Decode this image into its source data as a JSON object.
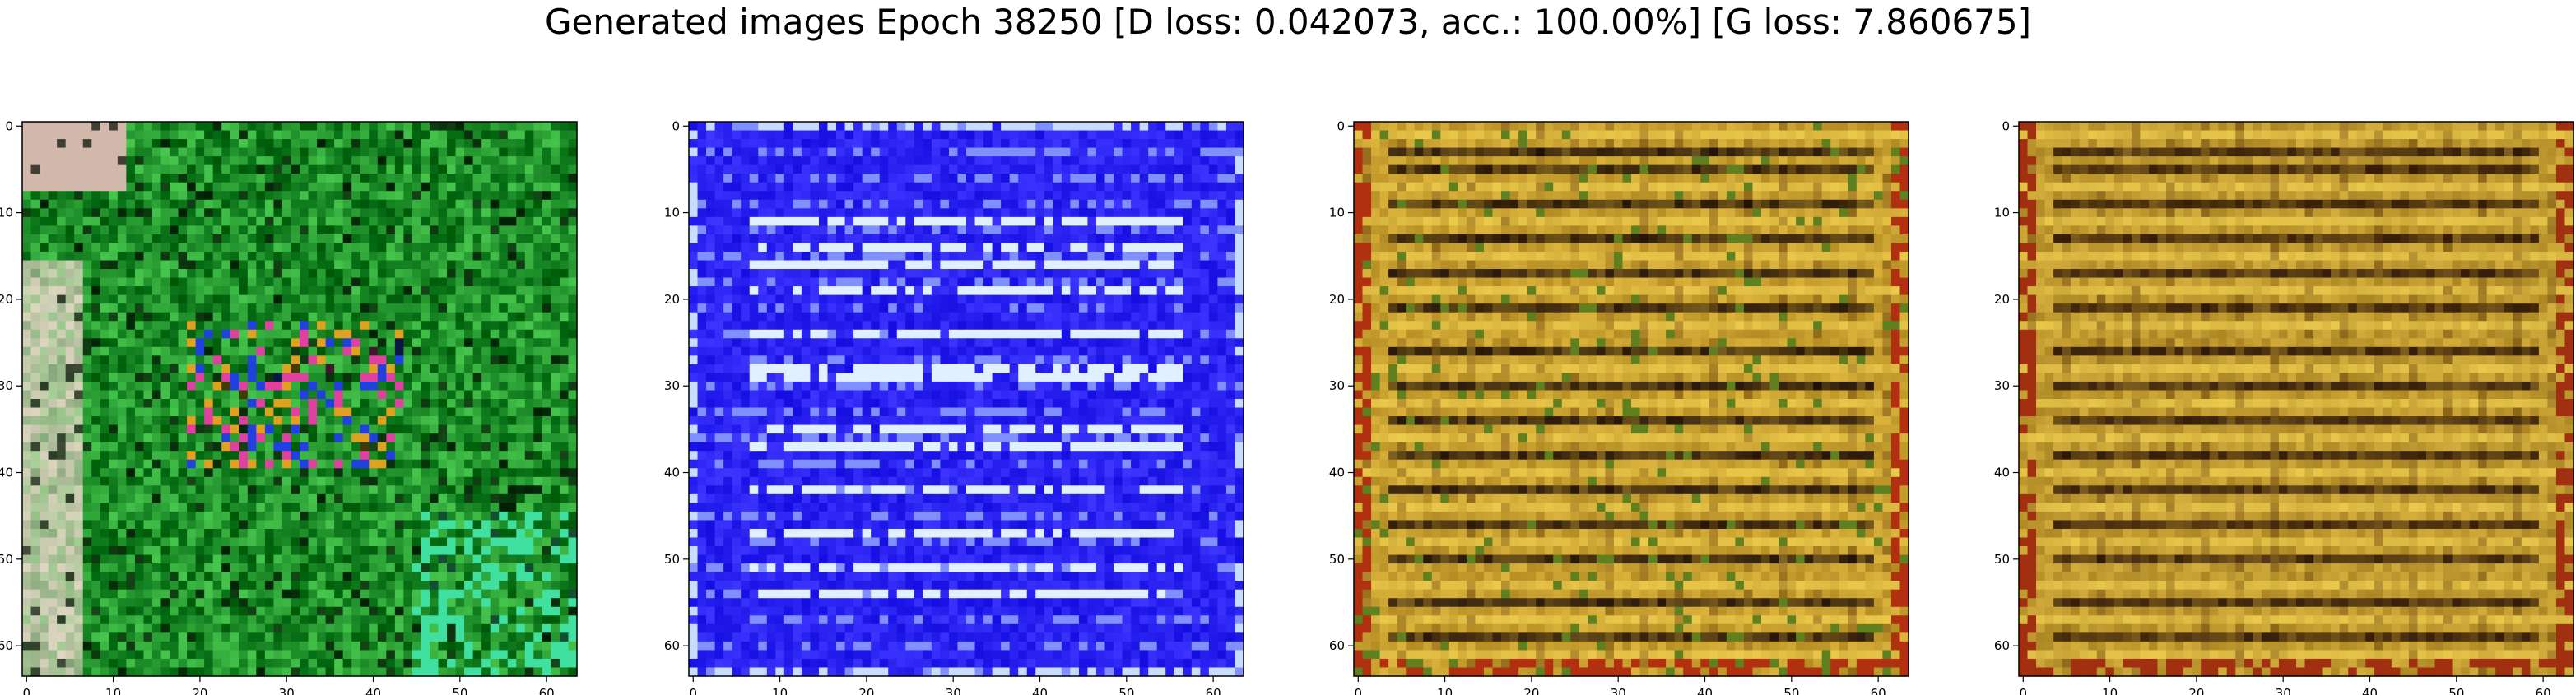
{
  "title": "Generated images Epoch 38250 [D loss: 0.042073, acc.: 100.00%] [G loss: 7.860675]",
  "chart_data": [
    {
      "type": "heatmap",
      "name": "generated-image-1",
      "image_size": 64,
      "xlim": [
        -0.5,
        63.5
      ],
      "ylim": [
        63.5,
        -0.5
      ],
      "xticks": [
        0,
        10,
        20,
        30,
        40,
        50,
        60
      ],
      "yticks": [
        0,
        10,
        20,
        30,
        40,
        50,
        60
      ],
      "base_color": "#1f8f2a",
      "accent_colors": [
        "#e8d8c8",
        "#40e0a0",
        "#e040a0",
        "#2040e0",
        "#e0a020"
      ],
      "texture": "mottled"
    },
    {
      "type": "heatmap",
      "name": "generated-image-2",
      "image_size": 64,
      "xlim": [
        -0.5,
        63.5
      ],
      "ylim": [
        63.5,
        -0.5
      ],
      "xticks": [
        0,
        10,
        20,
        30,
        40,
        50,
        60
      ],
      "yticks": [
        0,
        10,
        20,
        30,
        40,
        50,
        60
      ],
      "base_color": "#2a22f0",
      "accent_colors": [
        "#e0f0ff",
        "#8090ff"
      ],
      "texture": "horizontal-stripes"
    },
    {
      "type": "heatmap",
      "name": "generated-image-3",
      "image_size": 64,
      "xlim": [
        -0.5,
        63.5
      ],
      "ylim": [
        63.5,
        -0.5
      ],
      "xticks": [
        0,
        10,
        20,
        30,
        40,
        50,
        60
      ],
      "yticks": [
        0,
        10,
        20,
        30,
        40,
        50,
        60
      ],
      "base_color": "#c8a030",
      "accent_colors": [
        "#201008",
        "#f0d050",
        "#b03010",
        "#608020"
      ],
      "texture": "horizontal-stripes"
    },
    {
      "type": "heatmap",
      "name": "generated-image-4",
      "image_size": 64,
      "xlim": [
        -0.5,
        63.5
      ],
      "ylim": [
        63.5,
        -0.5
      ],
      "xticks": [
        0,
        10,
        20,
        30,
        40,
        50,
        60
      ],
      "yticks": [
        0,
        10,
        20,
        30,
        40,
        50,
        60
      ],
      "base_color": "#c09a30",
      "accent_colors": [
        "#301808",
        "#f0d050",
        "#a03010"
      ],
      "texture": "horizontal-stripes"
    }
  ]
}
